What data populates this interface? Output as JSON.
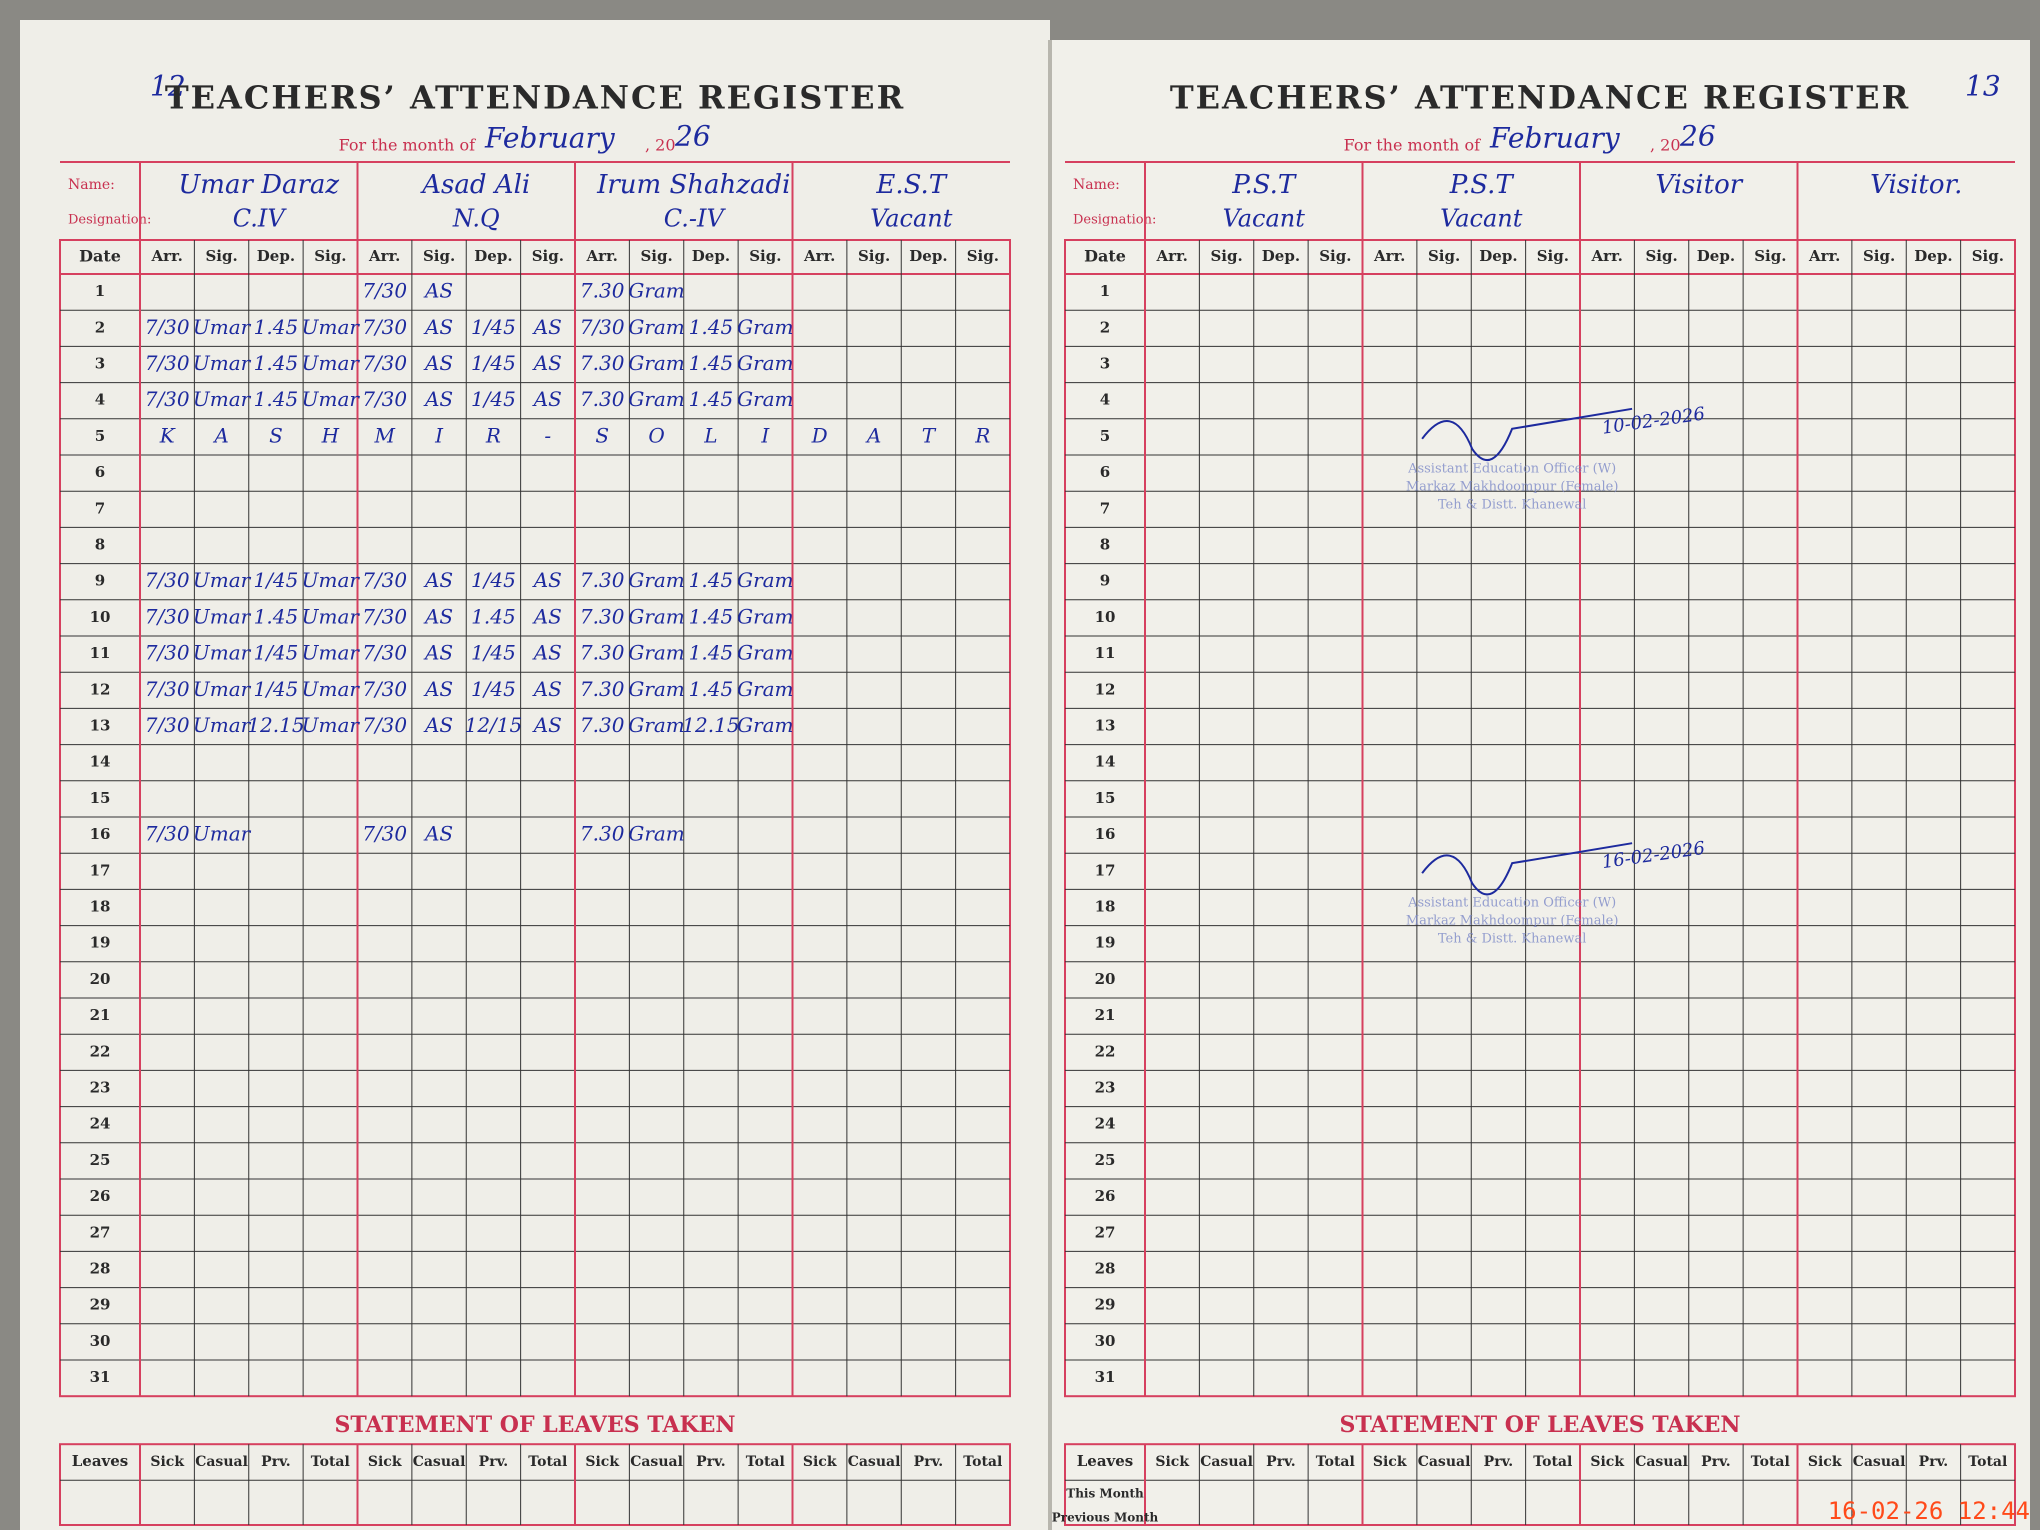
{
  "left_page": {
    "page_number": "12",
    "title": "TEACHERS’ ATTENDANCE REGISTER",
    "month_label": "For the month of",
    "month": "February",
    "year_prefix": ", 20",
    "year": "26",
    "name_label": "Name:",
    "designation_label": "Designation:",
    "teachers": [
      {
        "name": "Umar Daraz",
        "designation": "C.IV"
      },
      {
        "name": "Asad Ali",
        "designation": "N.Q"
      },
      {
        "name": "Irum Shahzadi",
        "designation": "C.-IV"
      },
      {
        "name": "E.S.T",
        "designation": "Vacant"
      }
    ],
    "date_header": "Date",
    "column_headers": [
      "Arr.",
      "Sig.",
      "Dep.",
      "Sig."
    ],
    "dates": [
      1,
      2,
      3,
      4,
      5,
      6,
      7,
      8,
      9,
      10,
      11,
      12,
      13,
      14,
      15,
      16,
      17,
      18,
      19,
      20,
      21,
      22,
      23,
      24,
      25,
      26,
      27,
      28,
      29,
      30,
      31
    ],
    "rows": [
      [
        null,
        null,
        null,
        null,
        "7/30",
        "AS",
        null,
        null,
        "7.30",
        "Gram",
        null,
        null,
        null,
        null,
        null,
        null
      ],
      [
        "7/30",
        "Umar",
        "1.45",
        "Umar",
        "7/30",
        "AS",
        "1/45",
        "AS",
        "7/30",
        "Gram",
        "1.45",
        "Gram",
        null,
        null,
        null,
        null
      ],
      [
        "7/30",
        "Umar",
        "1.45",
        "Umar",
        "7/30",
        "AS",
        "1/45",
        "AS",
        "7.30",
        "Gram",
        "1.45",
        "Gram",
        null,
        null,
        null,
        null
      ],
      [
        "7/30",
        "Umar",
        "1.45",
        "Umar",
        "7/30",
        "AS",
        "1/45",
        "AS",
        "7.30",
        "Gram",
        "1.45",
        "Gram",
        null,
        null,
        null,
        null
      ],
      [
        "K",
        "A",
        "S",
        "H",
        "M",
        "I",
        "R",
        "-",
        "S",
        "O",
        "L",
        "I",
        "D",
        "A",
        "T",
        "R"
      ],
      null,
      null,
      null,
      [
        "7/30",
        "Umar",
        "1/45",
        "Umar",
        "7/30",
        "AS",
        "1/45",
        "AS",
        "7.30",
        "Gram",
        "1.45",
        "Gram",
        null,
        null,
        null,
        null
      ],
      [
        "7/30",
        "Umar",
        "1.45",
        "Umar",
        "7/30",
        "AS",
        "1.45",
        "AS",
        "7.30",
        "Gram",
        "1.45",
        "Gram",
        null,
        null,
        null,
        null
      ],
      [
        "7/30",
        "Umar",
        "1/45",
        "Umar",
        "7/30",
        "AS",
        "1/45",
        "AS",
        "7.30",
        "Gram",
        "1.45",
        "Gram",
        null,
        null,
        null,
        null
      ],
      [
        "7/30",
        "Umar",
        "1/45",
        "Umar",
        "7/30",
        "AS",
        "1/45",
        "AS",
        "7.30",
        "Gram",
        "1.45",
        "Gram",
        null,
        null,
        null,
        null
      ],
      [
        "7/30",
        "Umar",
        "12.15",
        "Umar",
        "7/30",
        "AS",
        "12/15",
        "AS",
        "7.30",
        "Gram",
        "12.15",
        "Gram",
        null,
        null,
        null,
        null
      ],
      null,
      null,
      [
        "7/30",
        "Umar",
        null,
        null,
        "7/30",
        "AS",
        null,
        null,
        "7.30",
        "Gram",
        null,
        null,
        null,
        null,
        null,
        null
      ]
    ],
    "leaves": {
      "title": "STATEMENT OF LEAVES TAKEN",
      "header": "Leaves",
      "columns": [
        "Sick",
        "Casual",
        "Prv.",
        "Total"
      ]
    }
  },
  "right_page": {
    "page_number": "13",
    "title": "TEACHERS’ ATTENDANCE REGISTER",
    "month_label": "For the month of",
    "month": "February",
    "year_prefix": ", 20",
    "year": "26",
    "name_label": "Name:",
    "designation_label": "Designation:",
    "teachers": [
      {
        "name": "P.S.T",
        "designation": "Vacant"
      },
      {
        "name": "P.S.T",
        "designation": "Vacant"
      },
      {
        "name": "Visitor",
        "designation": null
      },
      {
        "name": "Visitor.",
        "designation": null
      }
    ],
    "date_header": "Date",
    "column_headers": [
      "Arr.",
      "Sig.",
      "Dep.",
      "Sig."
    ],
    "dates": [
      1,
      2,
      3,
      4,
      5,
      6,
      7,
      8,
      9,
      10,
      11,
      12,
      13,
      14,
      15,
      16,
      17,
      18,
      19,
      20,
      21,
      22,
      23,
      24,
      25,
      26,
      27,
      28,
      29,
      30,
      31
    ],
    "stamps": [
      {
        "date": "10-02-2026",
        "lines": [
          "Assistant Education Officer (W)",
          "Markaz Makhdoompur (Female)",
          "Teh & Distt. Khanewal"
        ]
      },
      {
        "date": "16-02-2026",
        "lines": [
          "Assistant Education Officer (W)",
          "Markaz Makhdoompur (Female)",
          "Teh & Distt. Khanewal"
        ]
      }
    ],
    "leaves": {
      "title": "STATEMENT OF LEAVES TAKEN",
      "header": "Leaves",
      "columns": [
        "Sick",
        "Casual",
        "Prv.",
        "Total"
      ],
      "rows": [
        "This Month",
        "Previous Month"
      ]
    }
  },
  "timestamp": "16-02-26 12:44"
}
